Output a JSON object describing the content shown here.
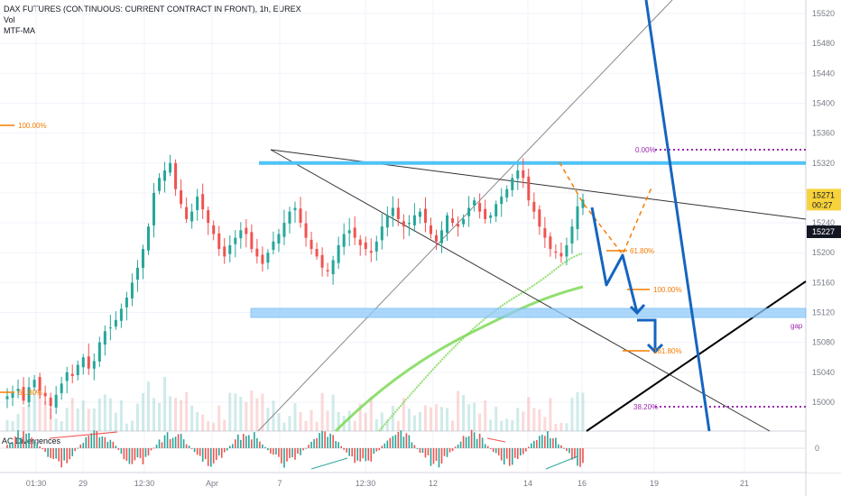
{
  "legend": {
    "title": "DAX FUTURES (CONTINUOUS: CURRENT CONTRACT IN FRONT), 1h, EUREX",
    "line2": "Vol",
    "line3": "MTF-MA"
  },
  "indicator_label": "AC Divergences",
  "price_badges": {
    "last_price": "15271",
    "countdown": "00:27",
    "marker_price": "15227",
    "price_color": "#f7d33b",
    "marker_color": "#131722"
  },
  "fib_labels": {
    "left_100": "100.00%",
    "left_618": "61.80%",
    "r_000": "0.00%",
    "r_618": "61.80%",
    "r_100": "100.00%",
    "r_1618": "161.80%",
    "r_382": "38.20%",
    "gap": "gap"
  },
  "colors": {
    "up": "#26a69a",
    "down": "#ef5350",
    "ma": "#7ed957",
    "fib": "#f57c00",
    "blue": "#1565c0",
    "resistance": "#4fc3f7",
    "zone": "#90caf9",
    "dotted": "#9c27b0"
  },
  "chart_data": {
    "type": "candlestick",
    "title": "DAX FUTURES (CONTINUOUS: CURRENT CONTRACT IN FRONT), 1h, EUREX",
    "y_ticks": [
      15000,
      15040,
      15080,
      15120,
      15160,
      15200,
      15240,
      15280,
      15320,
      15360,
      15400,
      15440,
      15480,
      15520
    ],
    "x_ticks": [
      "01:30",
      "29",
      "12:30",
      "Apr",
      "7",
      "12:30",
      "12",
      "14",
      "16",
      "19",
      "21"
    ],
    "ylim": [
      14970,
      15530
    ],
    "closes": [
      15008,
      15012,
      15018,
      15002,
      15020,
      15030,
      15015,
      15008,
      14995,
      15010,
      15025,
      15040,
      15035,
      15050,
      15060,
      15045,
      15055,
      15080,
      15095,
      15100,
      15110,
      15125,
      15140,
      15160,
      15180,
      15205,
      15235,
      15280,
      15300,
      15310,
      15320,
      15285,
      15265,
      15245,
      15255,
      15275,
      15258,
      15240,
      15225,
      15205,
      15195,
      15210,
      15220,
      15230,
      15225,
      15205,
      15195,
      15185,
      15200,
      15215,
      15225,
      15240,
      15255,
      15260,
      15240,
      15220,
      15205,
      15195,
      15180,
      15175,
      15190,
      15210,
      15225,
      15230,
      15220,
      15210,
      15205,
      15200,
      15215,
      15235,
      15250,
      15260,
      15245,
      15235,
      15240,
      15250,
      15255,
      15240,
      15225,
      15215,
      15230,
      15250,
      15240,
      15235,
      15245,
      15260,
      15270,
      15255,
      15245,
      15250,
      15265,
      15275,
      15285,
      15300,
      15310,
      15300,
      15270,
      15255,
      15235,
      15220,
      15205,
      15200,
      15195,
      15210,
      15235,
      15262,
      15271
    ],
    "vol_note": "Volume histogram shown at bottom of price pane; AC histogram in lower pane.",
    "levels": {
      "resistance": 15320,
      "gap_zone": [
        15112,
        15122
      ],
      "fib_0": 15335,
      "fib_618": 15201,
      "fib_100": 15150,
      "fib_1618": 15064,
      "fib_382": 14992
    }
  }
}
